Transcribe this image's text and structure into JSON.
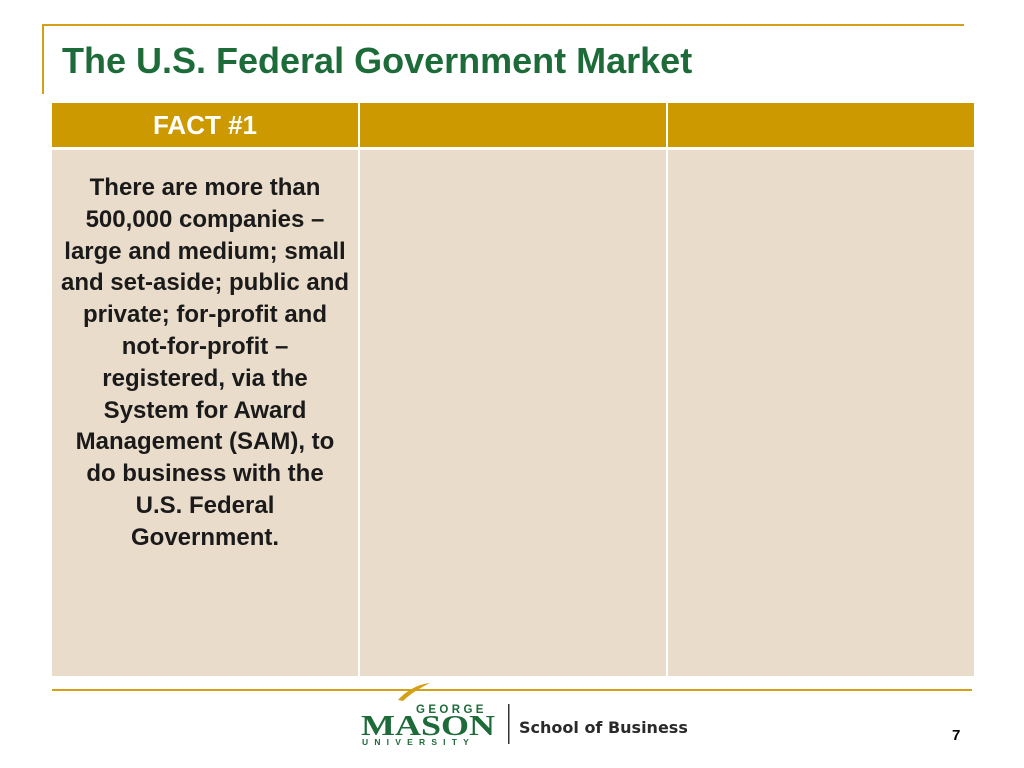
{
  "slide": {
    "title": "The U.S. Federal Government Market",
    "page_number": "7"
  },
  "table": {
    "headers": [
      "FACT #1",
      "",
      ""
    ],
    "cells": [
      "There are more than 500,000 companies – large and medium; small  and set-aside; public and private; for-profit and not-for-profit – registered, via the System for Award Management (SAM),  to do business with the U.S. Federal Government.",
      "",
      ""
    ]
  },
  "footer": {
    "logo_top": "GEORGE",
    "logo_main": "MASON",
    "logo_bottom": "UNIVERSITY",
    "school": "School of Business"
  },
  "colors": {
    "title_green": "#1e6b3a",
    "header_gold": "#cc9900",
    "cell_beige": "#eadccb",
    "rule_gold": "#d4a017"
  }
}
